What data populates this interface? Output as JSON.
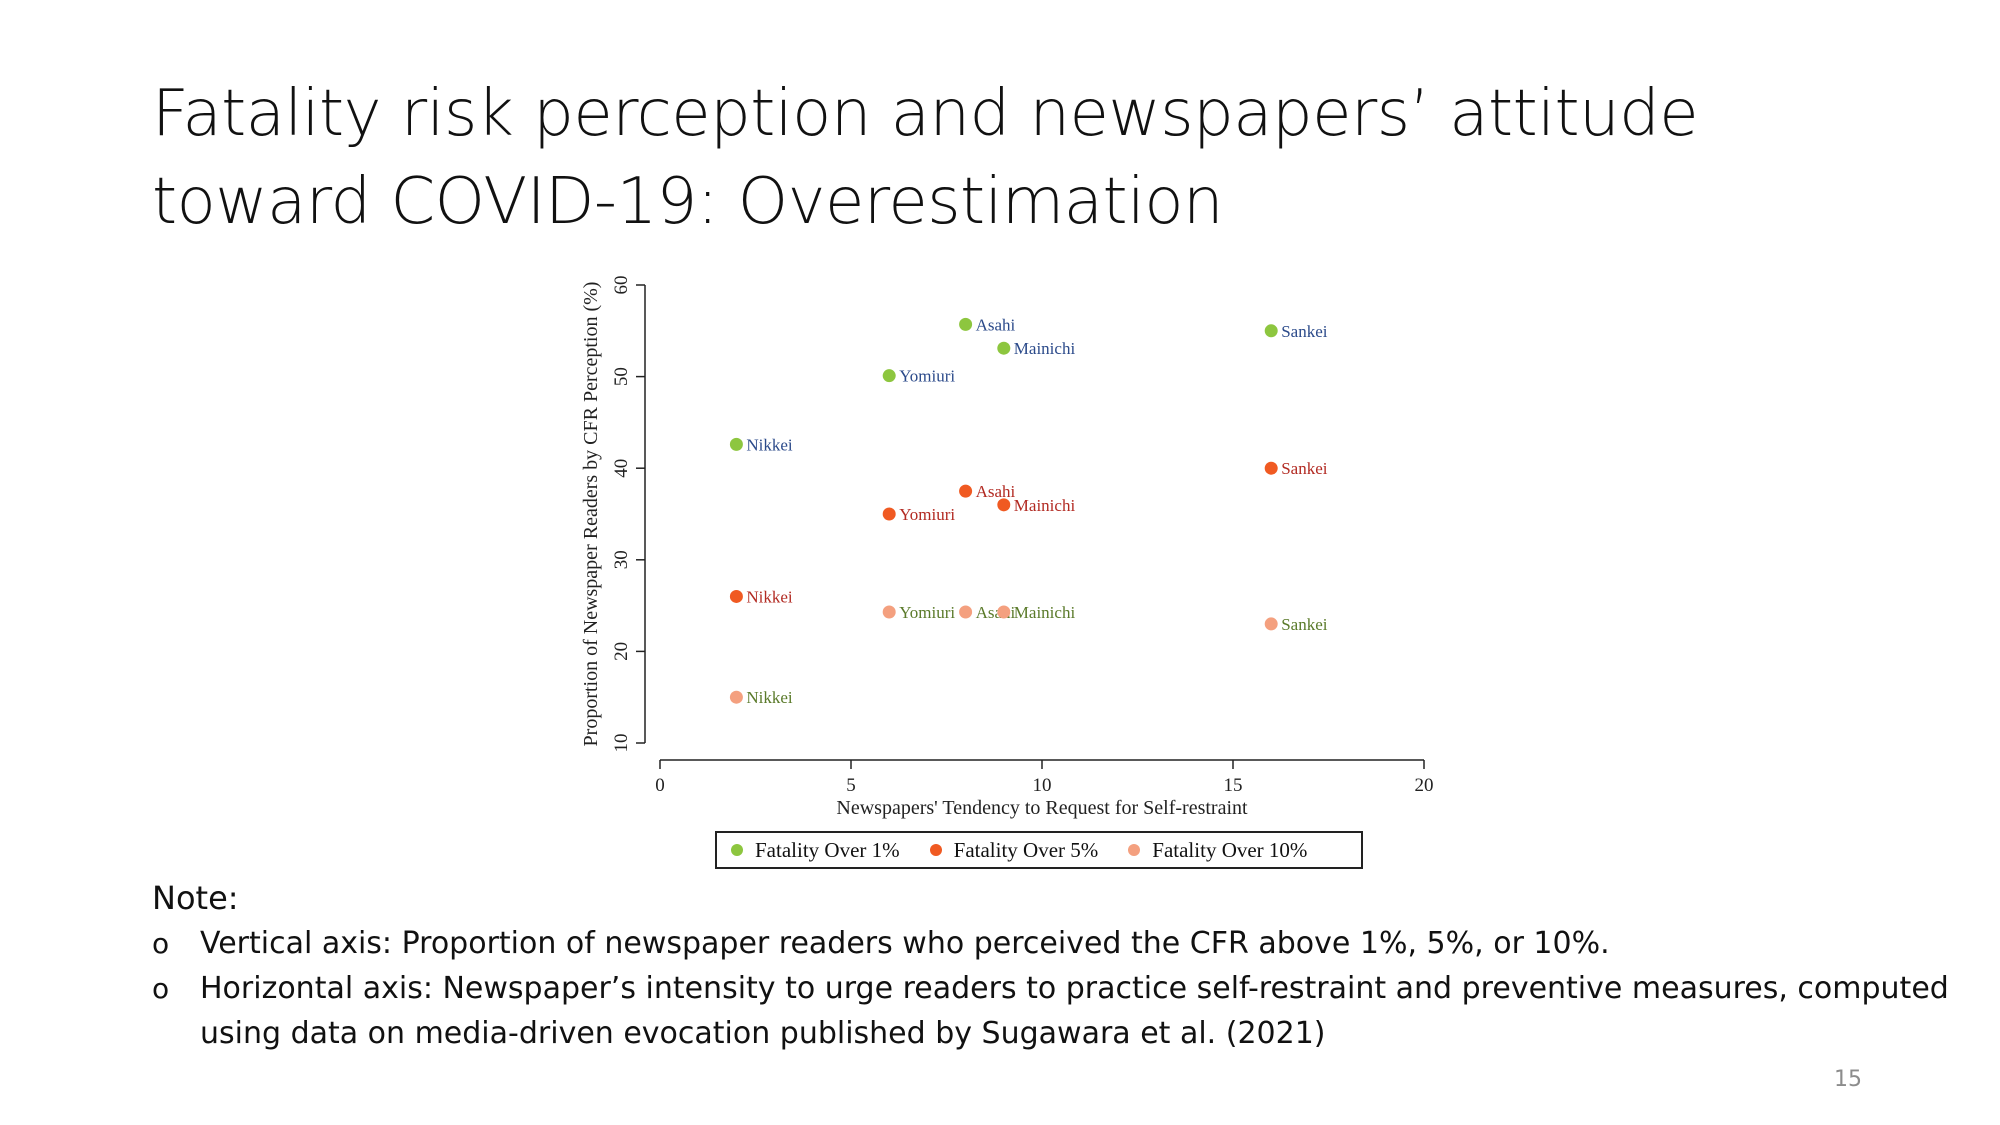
{
  "title": {
    "line1": "Fatality risk perception and newspapers’ attitude",
    "line2": "toward COVID-19: Overestimation"
  },
  "chart_data": {
    "type": "scatter",
    "xlabel": "Newspapers' Tendency to Request for Self-restraint",
    "ylabel": "Proportion of Newspaper Readers by CFR Perception (%)",
    "xlim": [
      0,
      20
    ],
    "ylim": [
      10,
      60
    ],
    "xticks": [
      0,
      5,
      10,
      15,
      20
    ],
    "yticks": [
      10,
      20,
      30,
      40,
      50,
      60
    ],
    "grid": false,
    "legend_position": "bottom",
    "series": [
      {
        "name": "Fatality Over 1%",
        "color": "#8dc63f",
        "label_color": "#2b4a8a",
        "points": [
          {
            "label": "Nikkei",
            "x": 2,
            "y": 42.6
          },
          {
            "label": "Yomiuri",
            "x": 6,
            "y": 50.1
          },
          {
            "label": "Asahi",
            "x": 8,
            "y": 55.7
          },
          {
            "label": "Mainichi",
            "x": 9,
            "y": 53.1
          },
          {
            "label": "Sankei",
            "x": 16,
            "y": 55.0
          }
        ]
      },
      {
        "name": "Fatality Over 5%",
        "color": "#f05a22",
        "label_color": "#b22a22",
        "points": [
          {
            "label": "Nikkei",
            "x": 2,
            "y": 26.0
          },
          {
            "label": "Yomiuri",
            "x": 6,
            "y": 35.0
          },
          {
            "label": "Asahi",
            "x": 8,
            "y": 37.5
          },
          {
            "label": "Mainichi",
            "x": 9,
            "y": 36.0
          },
          {
            "label": "Sankei",
            "x": 16,
            "y": 40.0
          }
        ]
      },
      {
        "name": "Fatality Over 10%",
        "color": "#f4a07f",
        "label_color": "#5a7a2a",
        "points": [
          {
            "label": "Nikkei",
            "x": 2,
            "y": 15.0
          },
          {
            "label": "Yomiuri",
            "x": 6,
            "y": 24.3
          },
          {
            "label": "Asahi",
            "x": 8,
            "y": 24.3
          },
          {
            "label": "Mainichi",
            "x": 9,
            "y": 24.3
          },
          {
            "label": "Sankei",
            "x": 16,
            "y": 23.0
          }
        ]
      }
    ]
  },
  "note": {
    "title": "Note:",
    "bullet": "o",
    "items": [
      "Vertical axis: Proportion of newspaper readers who perceived the CFR above 1%, 5%, or 10%.",
      "Horizontal axis: Newspaper’s intensity to urge readers to practice self-restraint and preventive measures, computed using data on media-driven evocation published by Sugawara et al. (2021)"
    ]
  },
  "page_number": "15"
}
